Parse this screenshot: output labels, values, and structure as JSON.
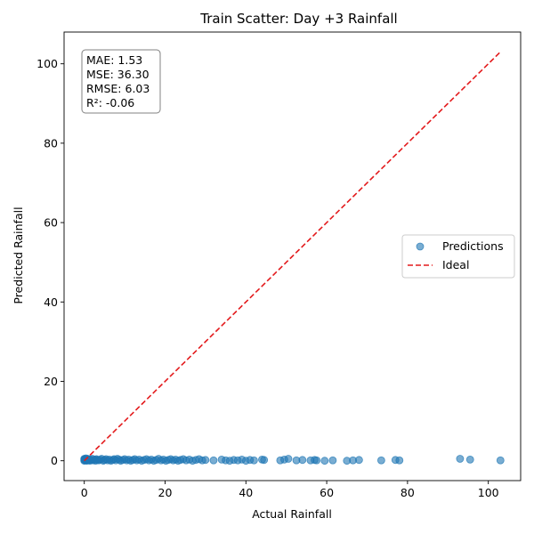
{
  "chart_data": {
    "type": "scatter",
    "title": "Train Scatter: Day +3 Rainfall",
    "xlabel": "Actual Rainfall",
    "ylabel": "Predicted Rainfall",
    "xlim": [
      -5,
      108
    ],
    "ylim": [
      -5,
      108
    ],
    "xticks": [
      0,
      20,
      40,
      60,
      80,
      100
    ],
    "yticks": [
      0,
      20,
      40,
      60,
      80,
      100
    ],
    "grid": false,
    "legend_position": "center-right",
    "stats": [
      "MAE: 1.53",
      "MSE: 36.30",
      "RMSE: 6.03",
      "R²: -0.06"
    ],
    "series": [
      {
        "name": "Predictions",
        "color": "#1f77b4",
        "x": [
          0,
          0,
          0,
          0.1,
          0.2,
          0.3,
          0.4,
          0.5,
          0.6,
          0.7,
          0.8,
          0.9,
          1.0,
          1.2,
          1.4,
          1.6,
          1.8,
          2.0,
          2.2,
          2.5,
          2.8,
          3.0,
          3.3,
          3.6,
          4.0,
          4.3,
          4.7,
          5.0,
          5.4,
          5.8,
          6.2,
          6.6,
          7.0,
          7.4,
          7.8,
          8.2,
          8.6,
          9.0,
          9.5,
          10.0,
          10.5,
          11.0,
          11.5,
          12.0,
          12.5,
          13.0,
          13.6,
          14.2,
          14.8,
          15.4,
          16.0,
          16.6,
          17.2,
          17.8,
          18.4,
          19.0,
          19.6,
          20.2,
          20.8,
          21.4,
          22.0,
          22.6,
          23.2,
          23.8,
          24.5,
          25.2,
          26.0,
          26.8,
          27.6,
          28.4,
          29.2,
          30.0,
          32.0,
          34.0,
          35.0,
          36.0,
          37.0,
          38.0,
          39.0,
          40.0,
          41.0,
          42.0,
          44.0,
          44.5,
          48.5,
          49.5,
          50.5,
          52.5,
          54.0,
          56.0,
          57.0,
          57.5,
          59.5,
          61.5,
          65.0,
          66.5,
          68.0,
          73.5,
          77.0,
          78.0,
          93.0,
          95.5,
          103.0
        ],
        "y": [
          0.5,
          0.2,
          0.0,
          0.4,
          0.1,
          0.3,
          0.6,
          0.2,
          0.0,
          0.3,
          0.5,
          0.1,
          0.2,
          0.4,
          0.0,
          0.3,
          0.2,
          0.5,
          0.1,
          0.3,
          0.0,
          0.4,
          0.2,
          0.1,
          0.3,
          0.5,
          0.0,
          0.2,
          0.4,
          0.1,
          0.3,
          0.0,
          0.2,
          0.4,
          0.1,
          0.5,
          0.3,
          0.0,
          0.2,
          0.4,
          0.1,
          0.3,
          0.0,
          0.2,
          0.4,
          0.1,
          0.3,
          0.0,
          0.2,
          0.4,
          0.1,
          0.3,
          0.0,
          0.2,
          0.5,
          0.1,
          0.3,
          0.0,
          0.2,
          0.4,
          0.1,
          0.3,
          0.0,
          0.2,
          0.4,
          0.1,
          0.3,
          0.0,
          0.2,
          0.4,
          0.1,
          0.2,
          0.1,
          0.3,
          0.1,
          0.0,
          0.2,
          0.1,
          0.3,
          0.0,
          0.2,
          0.1,
          0.3,
          0.2,
          0.1,
          0.3,
          0.5,
          0.1,
          0.2,
          0.1,
          0.2,
          0.1,
          0.0,
          0.1,
          0.0,
          0.1,
          0.2,
          0.1,
          0.2,
          0.1,
          0.5,
          0.3,
          0.1
        ]
      },
      {
        "name": "Ideal",
        "color": "#e31a1c",
        "style": "dashed",
        "x": [
          0,
          103
        ],
        "y": [
          0,
          103
        ]
      }
    ]
  }
}
